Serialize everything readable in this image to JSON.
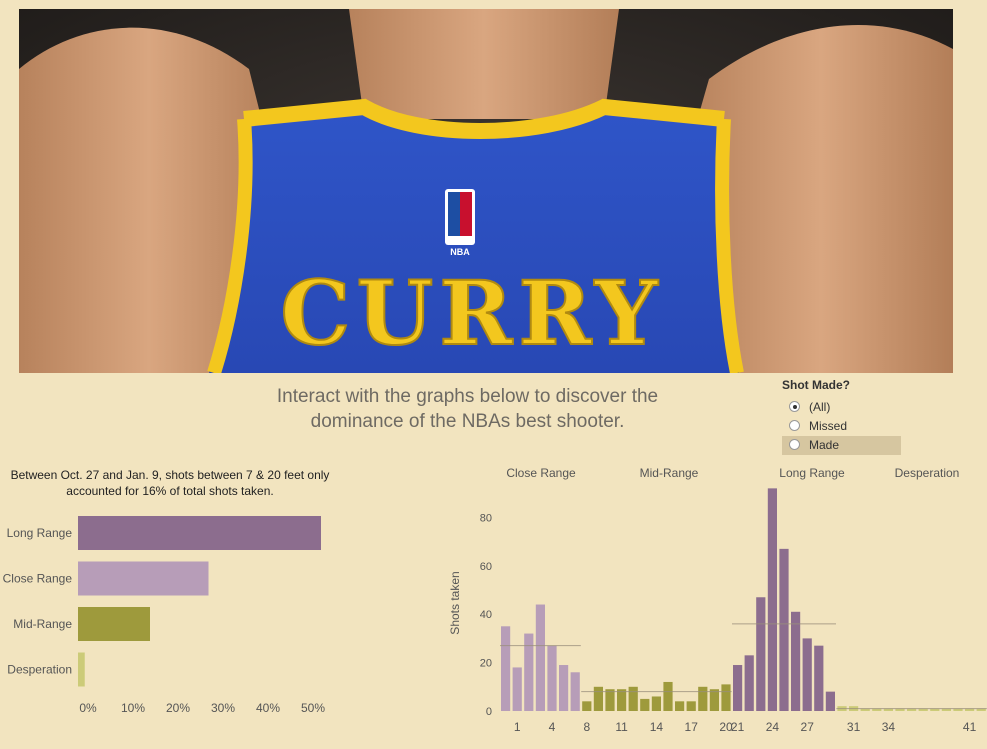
{
  "hero": {
    "jersey_name": "CURRY",
    "jersey_logo": "NBA"
  },
  "headline": {
    "line1": "Interact with the graphs below to discover the",
    "line2": "dominance of the NBAs best shooter."
  },
  "filter": {
    "title": "Shot Made?",
    "options": [
      {
        "label": "(All)",
        "selected": true
      },
      {
        "label": "Missed",
        "selected": false
      },
      {
        "label": "Made",
        "selected": false
      }
    ]
  },
  "colors": {
    "long_range": "#8c6d8e",
    "close_range": "#b79db8",
    "mid_range": "#9e9a3c",
    "desperation": "#cccb78",
    "background": "#f2e4bf"
  },
  "chart_data": [
    {
      "type": "bar",
      "orientation": "horizontal",
      "title": "Between Oct. 27 and Jan. 9, shots between 7 & 20 feet only accounted for 16% of total shots taken.",
      "categories": [
        "Long Range",
        "Close Range",
        "Mid-Range",
        "Desperation"
      ],
      "values": [
        54,
        29,
        16,
        1.5
      ],
      "x_ticks": [
        "0%",
        "10%",
        "20%",
        "30%",
        "40%",
        "50%"
      ],
      "xlim": [
        0,
        55
      ]
    },
    {
      "type": "bar",
      "title": "",
      "ylabel": "Shots taken",
      "ylim": [
        0,
        95
      ],
      "y_ticks": [
        0,
        20,
        40,
        60,
        80
      ],
      "x_tick_labels": [
        "1",
        "4",
        "8",
        "11",
        "14",
        "17",
        "20",
        "21",
        "24",
        "27",
        "31",
        "34",
        "41"
      ],
      "groups": [
        {
          "name": "Close Range",
          "color": "#b79db8",
          "average": 27,
          "distances": [
            0,
            1,
            2,
            3,
            4,
            5,
            6
          ],
          "values": [
            35,
            18,
            32,
            44,
            27,
            19,
            16
          ]
        },
        {
          "name": "Mid-Range",
          "color": "#9e9a3c",
          "average": 8,
          "distances": [
            8,
            9,
            10,
            11,
            12,
            13,
            14,
            15,
            16,
            17,
            18,
            19,
            20
          ],
          "values": [
            4,
            10,
            9,
            9,
            10,
            5,
            6,
            12,
            4,
            4,
            10,
            9,
            11
          ]
        },
        {
          "name": "Long Range",
          "color": "#8c6d8e",
          "average": 36,
          "distances": [
            21,
            22,
            23,
            24,
            25,
            26,
            27,
            28,
            29
          ],
          "values": [
            19,
            23,
            47,
            92,
            67,
            41,
            30,
            27,
            8
          ]
        },
        {
          "name": "Desperation",
          "color": "#cccb78",
          "average": 1,
          "distances": [
            30,
            31,
            32,
            33,
            34,
            35,
            36,
            37,
            38,
            39,
            40,
            41,
            42
          ],
          "values": [
            2,
            2,
            1,
            1,
            1,
            1,
            1,
            1,
            1,
            1,
            1,
            1,
            1
          ]
        }
      ]
    }
  ]
}
